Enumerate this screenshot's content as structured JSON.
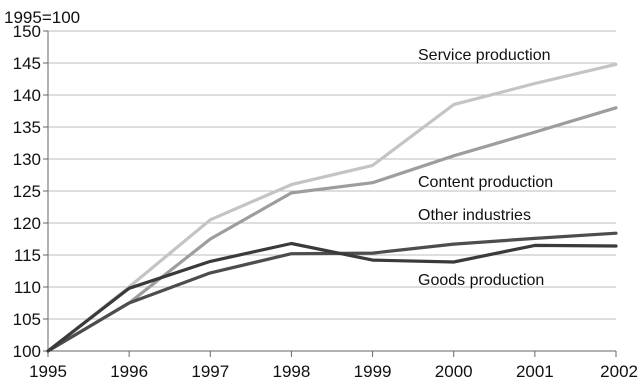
{
  "chart_data": {
    "type": "line",
    "ylabel": "1995=100",
    "x": [
      "1995",
      "1996",
      "1997",
      "1998",
      "1999",
      "2000",
      "2001",
      "2002"
    ],
    "ylim": [
      100,
      150
    ],
    "yticks": [
      100,
      105,
      110,
      115,
      120,
      125,
      130,
      135,
      140,
      145,
      150
    ],
    "grid": "horizontal",
    "legend": "inline labels",
    "series": [
      {
        "name": "Service production",
        "values": [
          100,
          110,
          120.5,
          126,
          129,
          138.5,
          141.8,
          144.8
        ],
        "color": "#c4c4c4"
      },
      {
        "name": "Content production",
        "values": [
          100,
          107.5,
          117.5,
          124.7,
          126.3,
          130.5,
          134.2,
          138
        ],
        "color": "#9d9d9d"
      },
      {
        "name": "Other industries",
        "values": [
          100,
          107.5,
          112.2,
          115.2,
          115.3,
          116.7,
          117.6,
          118.4
        ],
        "color": "#4d4d4d"
      },
      {
        "name": "Goods production",
        "values": [
          100,
          109.8,
          114,
          116.8,
          114.2,
          113.9,
          116.5,
          116.4
        ],
        "color": "#3a3a3a"
      }
    ]
  }
}
